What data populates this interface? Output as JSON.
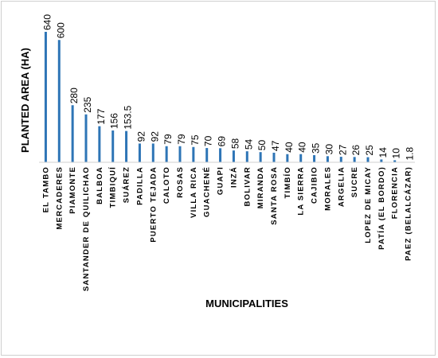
{
  "chart_data": {
    "type": "bar",
    "title": "",
    "xlabel": "MUNICIPALITIES",
    "ylabel": "PLANTED AREA (HA)",
    "ylim": [
      0,
      640
    ],
    "grid": false,
    "legend": "none",
    "bar_color": "#2E75B6",
    "categories": [
      "EL TAMBO",
      "MERCADERES",
      "PIAMONTE",
      "SANTANDER DE QUILICHAO",
      "BALBOA",
      "TIMBIQUÍ",
      "SUÁREZ",
      "PADILLA",
      "PUERTO TEJADA",
      "CALOTO",
      "ROSAS",
      "VILLA RICA",
      "GUACHENÉ",
      "GUAPI",
      "INZÁ",
      "BOLIVAR",
      "MIRANDA",
      "SANTA ROSA",
      "TIMBÍO",
      "LA SIERRA",
      "CAJIBIO",
      "MORALES",
      "ARGELIA",
      "SUCRE",
      "LOPEZ DE MICAY",
      "PATÍA (EL BORDO)",
      "FLORENCIA",
      "PAEZ (BELALCÁZAR)"
    ],
    "values": [
      640,
      600,
      280,
      235,
      177,
      156,
      153.5,
      92,
      92,
      79,
      79,
      75,
      70,
      69,
      58,
      54,
      50,
      47,
      40,
      40,
      35,
      30,
      27,
      26,
      25,
      14,
      10,
      1.8
    ],
    "data_labels": [
      "640",
      "600",
      "280",
      "235",
      "177",
      "156",
      "153.5",
      "92",
      "92",
      "79",
      "79",
      "75",
      "70",
      "69",
      "58",
      "54",
      "50",
      "47",
      "40",
      "40",
      "35",
      "30",
      "27",
      "26",
      "25",
      "14",
      "10",
      "1.8"
    ]
  }
}
